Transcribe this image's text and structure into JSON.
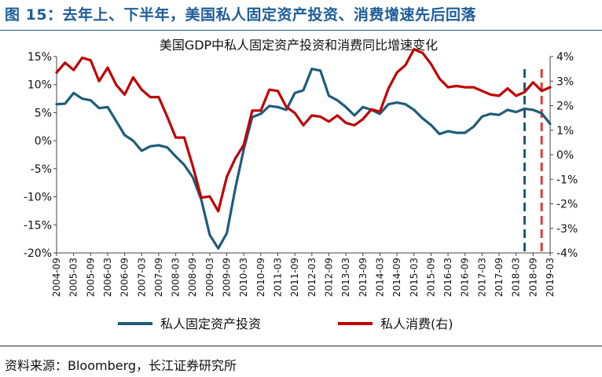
{
  "figure": {
    "heading": "图 15：去年上、下半年，美国私人固定资产投资、消费增速先后回落",
    "source": "资料来源：Bloomberg，长江证券研究所"
  },
  "chart_data": {
    "type": "line",
    "title": "美国GDP中私人固定资产投资和消费同比增速变化",
    "x": [
      "2004-09",
      "2004-12",
      "2005-03",
      "2005-06",
      "2005-09",
      "2005-12",
      "2006-03",
      "2006-06",
      "2006-09",
      "2006-12",
      "2007-03",
      "2007-06",
      "2007-09",
      "2007-12",
      "2008-03",
      "2008-06",
      "2008-09",
      "2008-12",
      "2009-03",
      "2009-06",
      "2009-09",
      "2009-12",
      "2010-03",
      "2010-06",
      "2010-09",
      "2010-12",
      "2011-03",
      "2011-06",
      "2011-09",
      "2011-12",
      "2012-03",
      "2012-06",
      "2012-09",
      "2012-12",
      "2013-03",
      "2013-06",
      "2013-09",
      "2013-12",
      "2014-03",
      "2014-06",
      "2014-09",
      "2014-12",
      "2015-03",
      "2015-06",
      "2015-09",
      "2015-12",
      "2016-03",
      "2016-06",
      "2016-09",
      "2016-12",
      "2017-03",
      "2017-06",
      "2017-09",
      "2017-12",
      "2018-03",
      "2018-06",
      "2018-09",
      "2018-12",
      "2019-03"
    ],
    "x_tick_labels": [
      "2004-09",
      "2005-03",
      "2005-09",
      "2006-03",
      "2006-09",
      "2007-03",
      "2007-09",
      "2008-03",
      "2008-09",
      "2009-03",
      "2009-09",
      "2010-03",
      "2010-09",
      "2011-03",
      "2011-09",
      "2012-03",
      "2012-09",
      "2013-03",
      "2013-09",
      "2014-03",
      "2014-09",
      "2015-03",
      "2015-09",
      "2016-03",
      "2016-09",
      "2017-03",
      "2017-09",
      "2018-03",
      "2018-09",
      "2019-03"
    ],
    "y_left": {
      "ylim": [
        -20,
        15
      ],
      "ticks": [
        "-20%",
        "-15%",
        "-10%",
        "-5%",
        "0%",
        "5%",
        "10%",
        "15%"
      ],
      "tick_values": [
        -20,
        -15,
        -10,
        -5,
        0,
        5,
        10,
        15
      ]
    },
    "y_right": {
      "ylim": [
        -4,
        4
      ],
      "ticks": [
        "-4%",
        "-3%",
        "-2%",
        "-1%",
        "0%",
        "1%",
        "2%",
        "3%",
        "4%"
      ],
      "tick_values": [
        -4,
        -3,
        -2,
        -1,
        0,
        1,
        2,
        3,
        4
      ]
    },
    "series": [
      {
        "name": "私人固定资产投资",
        "axis": "left",
        "color": "#1f5c7a",
        "values": [
          6.5,
          6.6,
          8.5,
          7.5,
          7.2,
          5.8,
          6.0,
          3.5,
          1.0,
          0.0,
          -1.8,
          -1.0,
          -0.8,
          -1.2,
          -2.8,
          -4.3,
          -6.5,
          -10.5,
          -16.8,
          -19.2,
          -16.5,
          -8.5,
          -1.5,
          4.2,
          4.8,
          6.2,
          6.0,
          5.5,
          8.5,
          9.0,
          12.8,
          12.5,
          8.0,
          7.2,
          6.0,
          4.5,
          6.0,
          5.5,
          4.8,
          6.5,
          6.8,
          6.5,
          5.5,
          4.0,
          2.8,
          1.2,
          1.7,
          1.4,
          1.4,
          2.5,
          4.3,
          4.8,
          4.6,
          5.5,
          5.1,
          5.7,
          5.5,
          4.9,
          3.0
        ]
      },
      {
        "name": "私人消费(右)",
        "axis": "right",
        "color": "#c00000",
        "values": [
          3.35,
          3.75,
          3.45,
          3.95,
          3.85,
          3.0,
          3.55,
          2.85,
          2.45,
          3.15,
          2.65,
          2.35,
          2.35,
          1.55,
          0.7,
          0.7,
          -0.45,
          -1.75,
          -1.7,
          -2.3,
          -0.9,
          -0.15,
          0.4,
          1.8,
          1.8,
          2.65,
          2.6,
          1.95,
          1.7,
          1.2,
          1.6,
          1.55,
          1.35,
          1.6,
          1.3,
          1.2,
          1.45,
          1.85,
          1.75,
          2.7,
          3.35,
          3.65,
          4.3,
          4.15,
          3.7,
          3.1,
          2.75,
          2.8,
          2.75,
          2.75,
          2.6,
          2.45,
          2.4,
          2.7,
          2.4,
          2.55,
          2.95,
          2.6,
          2.75
        ]
      }
    ],
    "markers": [
      {
        "at": "2018-06",
        "color": "#1f5c7a",
        "style": "dashed-vertical"
      },
      {
        "at": "2018-12",
        "color": "#e33a3a",
        "style": "dashed-vertical"
      }
    ],
    "grid": false,
    "legend_placement": "bottom"
  }
}
